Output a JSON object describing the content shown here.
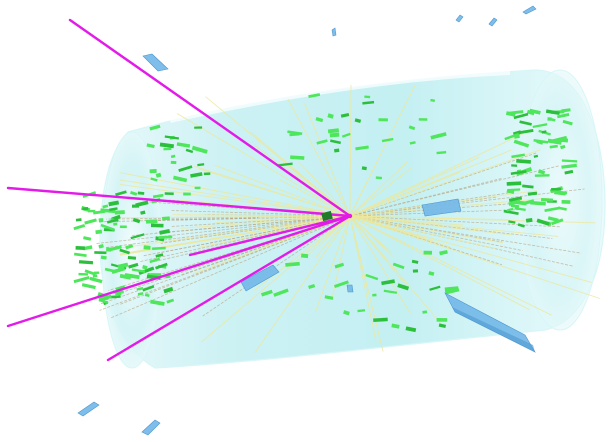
{
  "scene": {
    "subject": "particle-collision-event-display",
    "colors": {
      "background": "#ffffff",
      "detector_fill": "#bfeff2",
      "detector_edge": "#d8f6f8",
      "muon_track": "#e21be8",
      "charged_track": "#ece79c",
      "soft_track": "#b9a98a",
      "calorimeter_hit": "#4ee65a",
      "calorimeter_hit_dark": "#2cbf3b",
      "muon_chamber": "#74b8e8",
      "muon_chamber_dark": "#4f97cf",
      "vertex_marker": "#1f7a2c"
    },
    "counts": {
      "muon_tracks": 5
    }
  }
}
